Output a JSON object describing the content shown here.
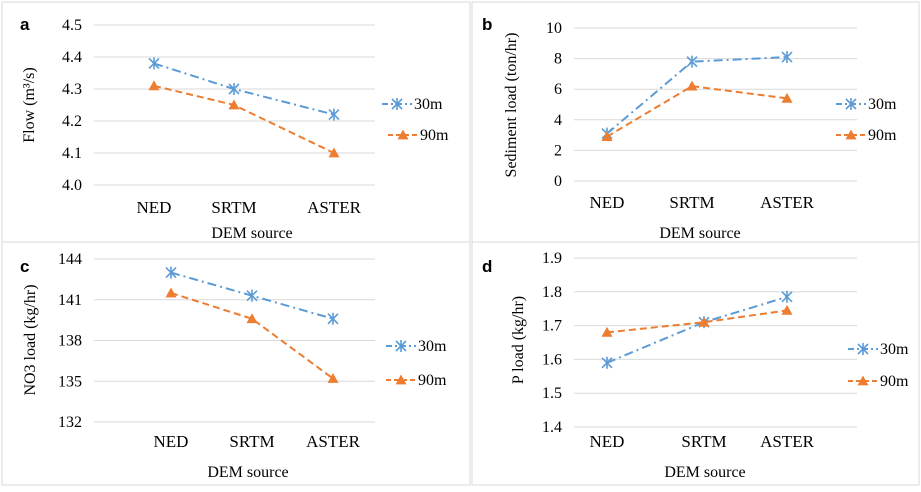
{
  "colors": {
    "series_30m": "#5B9BD5",
    "series_90m": "#ED7D31",
    "grid": "#D9D9D9",
    "panel_border": "#D9D9D9"
  },
  "chart_data": [
    {
      "panel": "a",
      "type": "line",
      "categories": [
        "NED",
        "SRTM",
        "ASTER"
      ],
      "xlabel": "DEM source",
      "ylabel": "Flow (m³/s)",
      "ylim": [
        4.0,
        4.5
      ],
      "yticks": [
        "4.0",
        "4.1",
        "4.2",
        "4.3",
        "4.4",
        "4.5"
      ],
      "grid": true,
      "legend": "right",
      "series": [
        {
          "name": "30m",
          "marker": "asterisk",
          "line": "dash-dot",
          "values": [
            4.38,
            4.3,
            4.22
          ]
        },
        {
          "name": "90m",
          "marker": "triangle",
          "line": "dashed",
          "values": [
            4.31,
            4.25,
            4.1
          ]
        }
      ]
    },
    {
      "panel": "b",
      "type": "line",
      "categories": [
        "NED",
        "SRTM",
        "ASTER"
      ],
      "xlabel": "DEM source",
      "ylabel": "Sediment load (ton/hr)",
      "ylim": [
        0,
        10
      ],
      "yticks": [
        "0",
        "2",
        "4",
        "6",
        "8",
        "10"
      ],
      "grid": true,
      "legend": "right",
      "series": [
        {
          "name": "30m",
          "marker": "asterisk",
          "line": "dash-dot",
          "values": [
            3.1,
            7.8,
            8.1
          ]
        },
        {
          "name": "90m",
          "marker": "triangle",
          "line": "dashed",
          "values": [
            2.9,
            6.2,
            5.4
          ]
        }
      ]
    },
    {
      "panel": "c",
      "type": "line",
      "categories": [
        "NED",
        "SRTM",
        "ASTER"
      ],
      "xlabel": "DEM source",
      "ylabel": "NO3 load (kg/hr)",
      "ylim": [
        132,
        144
      ],
      "yticks": [
        "132",
        "135",
        "138",
        "141",
        "144"
      ],
      "grid": true,
      "legend": "right",
      "series": [
        {
          "name": "30m",
          "marker": "asterisk",
          "line": "dash-dot",
          "values": [
            143.0,
            141.3,
            139.6
          ]
        },
        {
          "name": "90m",
          "marker": "triangle",
          "line": "dashed",
          "values": [
            141.5,
            139.6,
            135.2
          ]
        }
      ]
    },
    {
      "panel": "d",
      "type": "line",
      "categories": [
        "NED",
        "SRTM",
        "ASTER"
      ],
      "xlabel": "DEM source",
      "ylabel": "P load (kg/hr)",
      "ylim": [
        1.4,
        1.9
      ],
      "yticks": [
        "1.4",
        "1.5",
        "1.6",
        "1.7",
        "1.8",
        "1.9"
      ],
      "grid": true,
      "legend": "right",
      "series": [
        {
          "name": "30m",
          "marker": "asterisk",
          "line": "dash-dot",
          "values": [
            1.59,
            1.71,
            1.785
          ]
        },
        {
          "name": "90m",
          "marker": "triangle",
          "line": "dashed",
          "values": [
            1.68,
            1.71,
            1.745
          ]
        }
      ]
    }
  ]
}
